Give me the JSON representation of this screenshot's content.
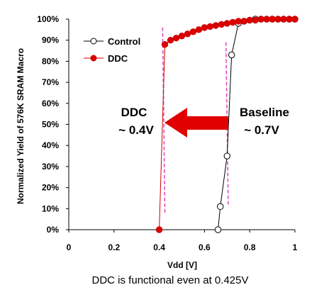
{
  "chart_data": {
    "type": "scatter",
    "xlabel": "Vdd [V]",
    "ylabel": "Normalized Yield of 576K SRAM Macro",
    "xlim": [
      0,
      1
    ],
    "ylim": [
      0,
      100
    ],
    "x_ticks": [
      "0",
      "0.2",
      "0.4",
      "0.6",
      "0.8",
      "1"
    ],
    "y_ticks": [
      "0%",
      "10%",
      "20%",
      "30%",
      "40%",
      "50%",
      "60%",
      "70%",
      "80%",
      "90%",
      "100%"
    ],
    "grid": false,
    "legend_position": "top-left",
    "series": [
      {
        "name": "Control",
        "color": "#000000",
        "marker": "open-circle",
        "x": [
          0.66,
          0.67,
          0.7,
          0.72,
          0.75,
          0.775,
          0.8,
          0.825,
          0.85,
          0.875,
          0.9,
          0.925,
          0.95,
          0.975,
          1.0
        ],
        "y": [
          0,
          11,
          35,
          83,
          98,
          99,
          99.5,
          100,
          100,
          100,
          100,
          100,
          100,
          100,
          100
        ]
      },
      {
        "name": "DDC",
        "color": "#cc0000",
        "marker": "filled-circle",
        "x": [
          0.4,
          0.425,
          0.45,
          0.475,
          0.5,
          0.525,
          0.55,
          0.575,
          0.6,
          0.625,
          0.65,
          0.675,
          0.7,
          0.725,
          0.75,
          0.775,
          0.8,
          0.825,
          0.85,
          0.875,
          0.9,
          0.925,
          0.95,
          0.975,
          1.0
        ],
        "y": [
          0,
          88,
          90,
          91,
          92,
          93,
          94,
          95,
          96,
          96.5,
          97,
          97.5,
          98,
          98.5,
          99,
          99,
          99.5,
          99.5,
          100,
          100,
          100,
          100,
          100,
          100,
          100
        ]
      }
    ],
    "threshold_lines": [
      {
        "x_top": 0.415,
        "x_bottom": 0.425,
        "y_from": 8,
        "y_to": 96,
        "color": "#e040c0"
      },
      {
        "x_top": 0.695,
        "x_bottom": 0.705,
        "y_from": 12,
        "y_to": 89,
        "color": "#e040c0"
      }
    ],
    "annotations": {
      "ddc_label": "DDC",
      "ddc_value": "~ 0.4V",
      "baseline_label": "Baseline",
      "baseline_value": "~ 0.7V",
      "arrow_color": "#e00000"
    }
  },
  "caption": "DDC is functional even at 0.425V"
}
